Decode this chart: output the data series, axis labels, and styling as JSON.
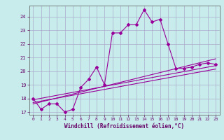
{
  "title": "",
  "xlabel": "Windchill (Refroidissement éolien,°C)",
  "ylabel": "",
  "bg_color": "#c8ecec",
  "grid_color": "#aaaacc",
  "line_color": "#990099",
  "xlim": [
    -0.5,
    23.5
  ],
  "ylim": [
    16.8,
    24.8
  ],
  "yticks": [
    17,
    18,
    19,
    20,
    21,
    22,
    23,
    24
  ],
  "xticks": [
    0,
    1,
    2,
    3,
    4,
    5,
    6,
    7,
    8,
    9,
    10,
    11,
    12,
    13,
    14,
    15,
    16,
    17,
    18,
    19,
    20,
    21,
    22,
    23
  ],
  "lines": [
    {
      "x": [
        0,
        1,
        2,
        3,
        4,
        5,
        6,
        7,
        8,
        9,
        10,
        11,
        12,
        13,
        14,
        15,
        16,
        17,
        18,
        19,
        20,
        21,
        22,
        23
      ],
      "y": [
        18.0,
        17.2,
        17.6,
        17.6,
        17.0,
        17.2,
        18.8,
        19.4,
        20.3,
        19.0,
        22.8,
        22.8,
        23.4,
        23.4,
        24.5,
        23.6,
        23.8,
        22.0,
        20.2,
        20.2,
        20.3,
        20.5,
        20.6,
        20.5
      ]
    },
    {
      "x": [
        0,
        23
      ],
      "y": [
        17.9,
        20.4
      ]
    },
    {
      "x": [
        0,
        23
      ],
      "y": [
        17.7,
        20.15
      ]
    },
    {
      "x": [
        0,
        23
      ],
      "y": [
        17.6,
        20.9
      ]
    }
  ]
}
